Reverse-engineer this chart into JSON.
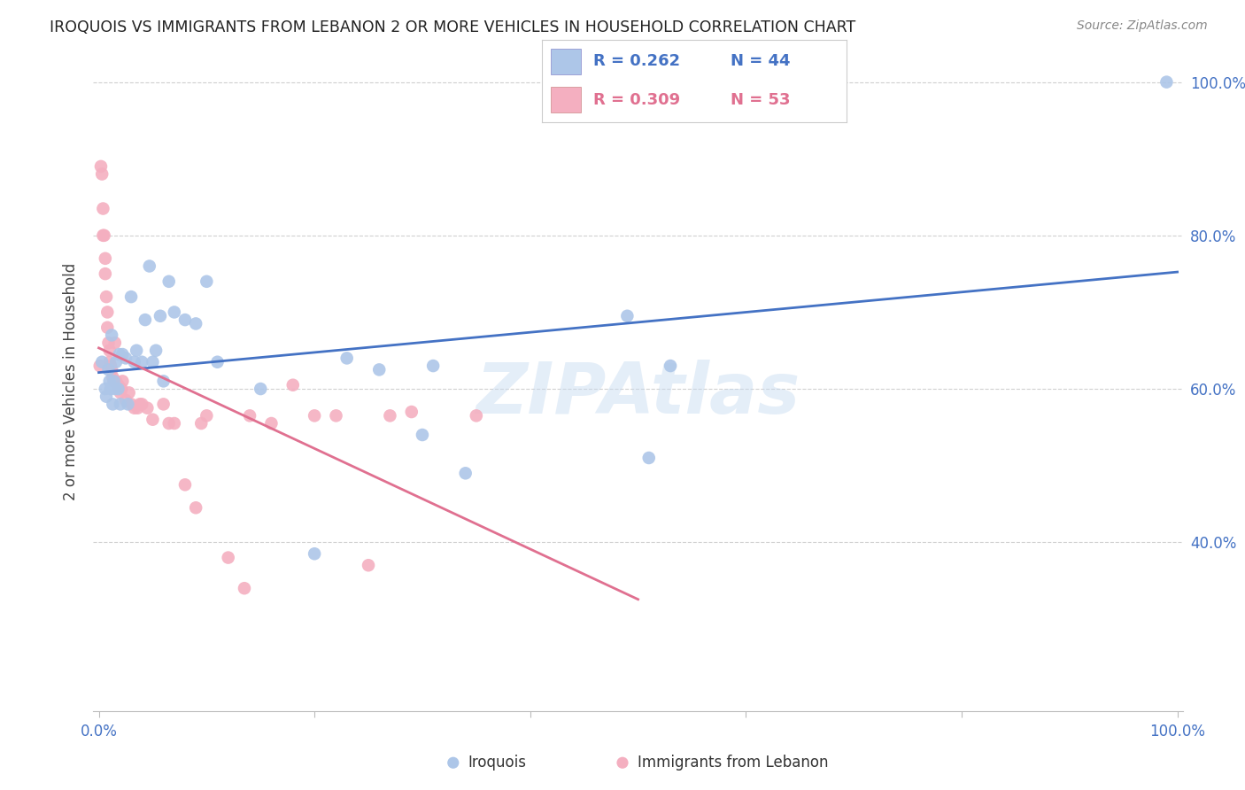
{
  "title": "IROQUOIS VS IMMIGRANTS FROM LEBANON 2 OR MORE VEHICLES IN HOUSEHOLD CORRELATION CHART",
  "source": "Source: ZipAtlas.com",
  "ylabel": "2 or more Vehicles in Household",
  "xlim": [
    -0.005,
    1.005
  ],
  "ylim": [
    0.18,
    1.04
  ],
  "x_ticks": [
    0.0,
    0.2,
    0.4,
    0.6,
    0.8,
    1.0
  ],
  "x_tick_labels": [
    "0.0%",
    "",
    "",
    "",
    "",
    "100.0%"
  ],
  "y_ticks": [
    0.4,
    0.6,
    0.8,
    1.0
  ],
  "y_tick_labels": [
    "40.0%",
    "60.0%",
    "80.0%",
    "100.0%"
  ],
  "legend_R_blue": "R = 0.262",
  "legend_N_blue": "N = 44",
  "legend_R_pink": "R = 0.309",
  "legend_N_pink": "N = 53",
  "watermark": "ZIPAtlas",
  "blue_scatter_color": "#adc6e8",
  "pink_scatter_color": "#f4afc0",
  "line_blue_color": "#4472c4",
  "line_pink_color": "#e07090",
  "tick_color": "#4472c4",
  "grid_color": "#d0d0d0",
  "iroquois_x": [
    0.003,
    0.006,
    0.007,
    0.009,
    0.01,
    0.011,
    0.012,
    0.013,
    0.014,
    0.015,
    0.016,
    0.018,
    0.019,
    0.02,
    0.022,
    0.025,
    0.027,
    0.03,
    0.033,
    0.035,
    0.04,
    0.043,
    0.047,
    0.05,
    0.053,
    0.057,
    0.06,
    0.065,
    0.07,
    0.08,
    0.09,
    0.1,
    0.11,
    0.15,
    0.2,
    0.23,
    0.26,
    0.3,
    0.31,
    0.34,
    0.49,
    0.51,
    0.53,
    0.99
  ],
  "iroquois_y": [
    0.635,
    0.6,
    0.59,
    0.625,
    0.61,
    0.6,
    0.67,
    0.58,
    0.61,
    0.6,
    0.635,
    0.6,
    0.645,
    0.58,
    0.645,
    0.64,
    0.58,
    0.72,
    0.635,
    0.65,
    0.635,
    0.69,
    0.76,
    0.635,
    0.65,
    0.695,
    0.61,
    0.74,
    0.7,
    0.69,
    0.685,
    0.74,
    0.635,
    0.6,
    0.385,
    0.64,
    0.625,
    0.54,
    0.63,
    0.49,
    0.695,
    0.51,
    0.63,
    1.0
  ],
  "lebanon_x": [
    0.001,
    0.002,
    0.003,
    0.004,
    0.004,
    0.005,
    0.006,
    0.006,
    0.007,
    0.008,
    0.008,
    0.009,
    0.01,
    0.01,
    0.011,
    0.012,
    0.013,
    0.014,
    0.015,
    0.016,
    0.017,
    0.018,
    0.019,
    0.02,
    0.021,
    0.022,
    0.025,
    0.028,
    0.03,
    0.033,
    0.036,
    0.038,
    0.04,
    0.045,
    0.05,
    0.06,
    0.065,
    0.07,
    0.08,
    0.09,
    0.095,
    0.1,
    0.12,
    0.135,
    0.14,
    0.16,
    0.18,
    0.2,
    0.22,
    0.25,
    0.27,
    0.29,
    0.35
  ],
  "lebanon_y": [
    0.63,
    0.89,
    0.88,
    0.835,
    0.8,
    0.8,
    0.77,
    0.75,
    0.72,
    0.7,
    0.68,
    0.66,
    0.65,
    0.635,
    0.63,
    0.625,
    0.615,
    0.61,
    0.66,
    0.61,
    0.605,
    0.605,
    0.6,
    0.595,
    0.6,
    0.61,
    0.585,
    0.595,
    0.58,
    0.575,
    0.575,
    0.58,
    0.58,
    0.575,
    0.56,
    0.58,
    0.555,
    0.555,
    0.475,
    0.445,
    0.555,
    0.565,
    0.38,
    0.34,
    0.565,
    0.555,
    0.605,
    0.565,
    0.565,
    0.37,
    0.565,
    0.57,
    0.565
  ]
}
